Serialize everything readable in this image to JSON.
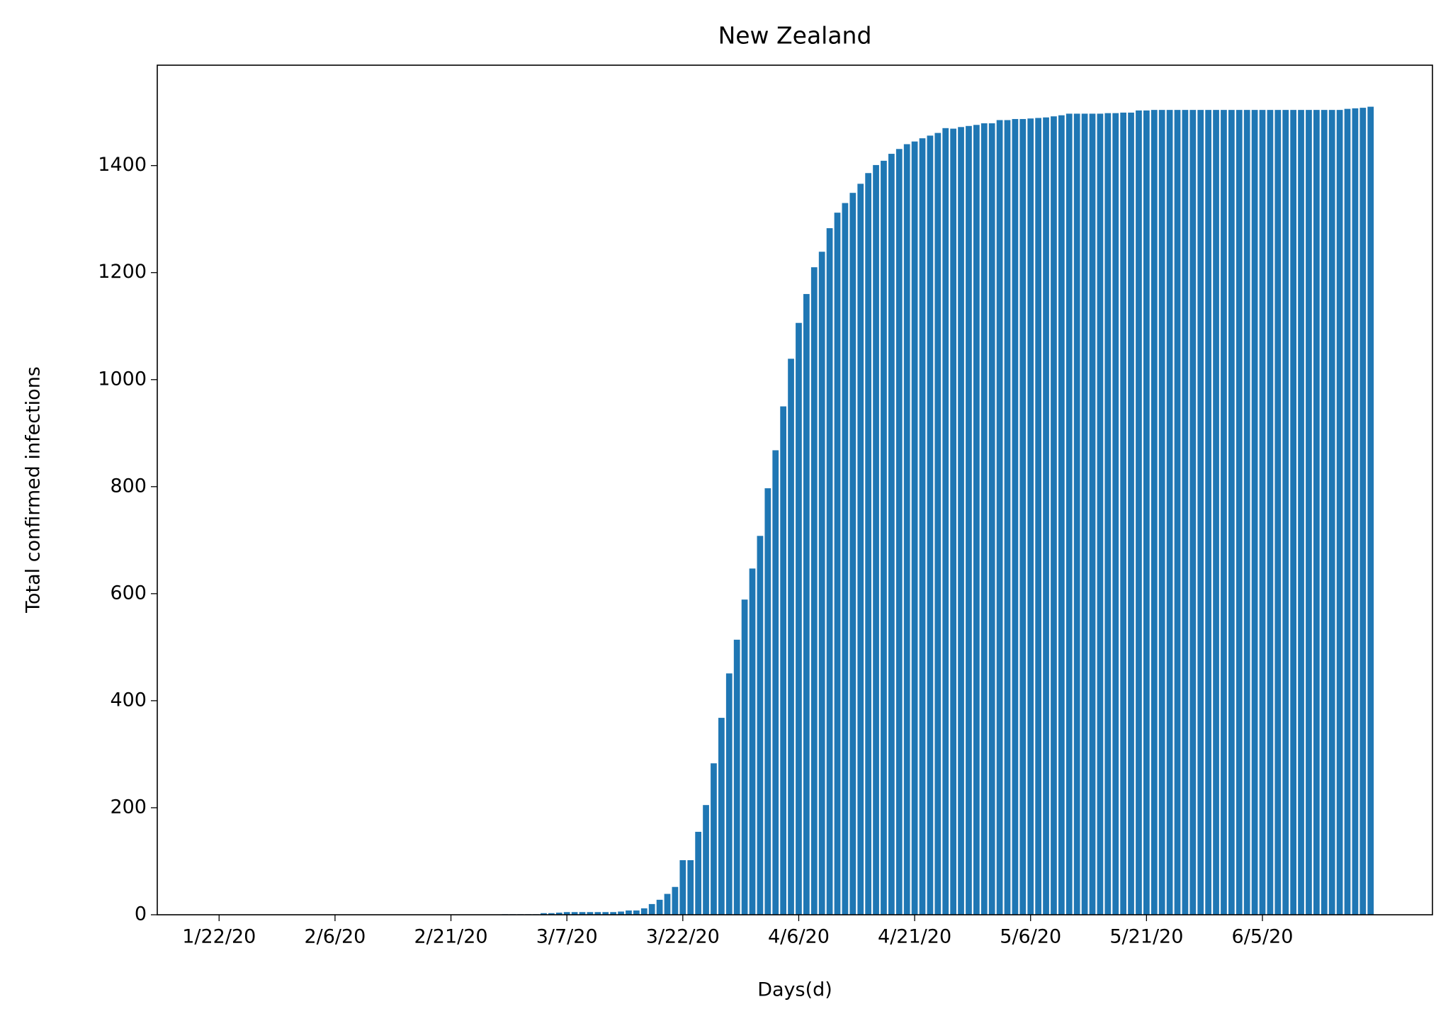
{
  "chart_data": {
    "type": "bar",
    "title": "New Zealand",
    "x_label": "Days(d)",
    "y_label": "Total confirmed infections",
    "color": "#1f77b4",
    "categories": [
      "1/22/20",
      null,
      null,
      null,
      null,
      null,
      null,
      null,
      null,
      null,
      null,
      null,
      null,
      null,
      null,
      "2/6/20",
      null,
      null,
      null,
      null,
      null,
      null,
      null,
      null,
      null,
      null,
      null,
      null,
      null,
      null,
      "2/21/20",
      null,
      null,
      null,
      null,
      null,
      null,
      null,
      null,
      null,
      null,
      null,
      null,
      null,
      null,
      "3/7/20",
      null,
      null,
      null,
      null,
      null,
      null,
      null,
      null,
      null,
      null,
      null,
      null,
      null,
      null,
      "3/22/20",
      null,
      null,
      null,
      null,
      null,
      null,
      null,
      null,
      null,
      null,
      null,
      null,
      null,
      null,
      "4/6/20",
      null,
      null,
      null,
      null,
      null,
      null,
      null,
      null,
      null,
      null,
      null,
      null,
      null,
      null,
      "4/21/20",
      null,
      null,
      null,
      null,
      null,
      null,
      null,
      null,
      null,
      null,
      null,
      null,
      null,
      null,
      "5/6/20",
      null,
      null,
      null,
      null,
      null,
      null,
      null,
      null,
      null,
      null,
      null,
      null,
      null,
      null,
      "5/21/20",
      null,
      null,
      null,
      null,
      null,
      null,
      null,
      null,
      null,
      null,
      null,
      null,
      null,
      null,
      "6/5/20",
      null,
      null,
      null,
      null,
      null,
      null,
      null,
      null,
      null,
      null,
      null,
      null,
      null,
      null
    ],
    "values": [
      0,
      0,
      0,
      0,
      0,
      0,
      0,
      0,
      0,
      0,
      0,
      0,
      0,
      0,
      0,
      0,
      0,
      0,
      0,
      0,
      0,
      0,
      0,
      0,
      0,
      0,
      0,
      0,
      0,
      0,
      0,
      0,
      0,
      0,
      0,
      0,
      0,
      1,
      1,
      1,
      1,
      1,
      3,
      3,
      4,
      5,
      5,
      5,
      5,
      5,
      5,
      5,
      6,
      8,
      8,
      12,
      20,
      28,
      39,
      52,
      102,
      102,
      155,
      205,
      283,
      368,
      451,
      514,
      589,
      647,
      708,
      797,
      868,
      950,
      1039,
      1106,
      1160,
      1210,
      1239,
      1283,
      1312,
      1330,
      1349,
      1366,
      1386,
      1401,
      1409,
      1422,
      1431,
      1440,
      1445,
      1451,
      1456,
      1461,
      1470,
      1469,
      1472,
      1474,
      1476,
      1479,
      1479,
      1485,
      1485,
      1487,
      1487,
      1488,
      1489,
      1490,
      1492,
      1494,
      1497,
      1497,
      1497,
      1497,
      1497,
      1498,
      1498,
      1499,
      1499,
      1503,
      1503,
      1504,
      1504,
      1504,
      1504,
      1504,
      1504,
      1504,
      1504,
      1504,
      1504,
      1504,
      1504,
      1504,
      1504,
      1504,
      1504,
      1504,
      1504,
      1504,
      1504,
      1504,
      1504,
      1504,
      1504,
      1504,
      1506,
      1507,
      1508,
      1510
    ],
    "ylim": [
      0,
      1587.6
    ],
    "yticks": [
      0,
      200,
      400,
      600,
      800,
      1000,
      1200,
      1400
    ],
    "grid": false
  }
}
